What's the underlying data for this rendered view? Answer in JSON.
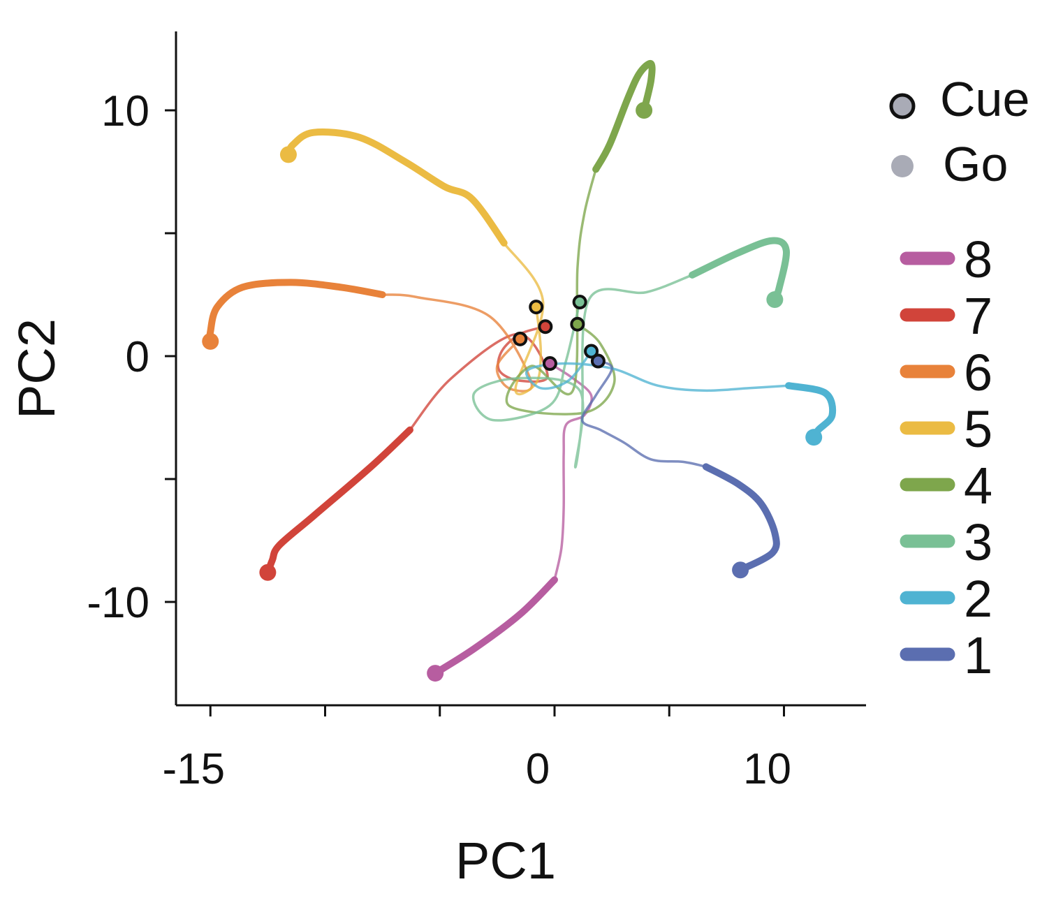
{
  "chart_data": {
    "type": "line",
    "title": "",
    "xlabel": "PC1",
    "ylabel": "PC2",
    "xlim": [
      -16.5,
      13.7
    ],
    "ylim": [
      -14.2,
      13.2
    ],
    "xticks": [
      -15,
      -10,
      -5,
      0,
      5,
      10
    ],
    "xtick_labels": [
      "-15",
      "",
      "",
      "0",
      "",
      "10"
    ],
    "yticks": [
      -10,
      -5,
      0,
      5,
      10
    ],
    "ytick_labels": [
      "-10",
      "",
      "0",
      "",
      "10"
    ],
    "grid": false,
    "marker_legend": [
      {
        "label": "Cue",
        "style": "outlined"
      },
      {
        "label": "Go",
        "style": "filled"
      }
    ],
    "marker_legend_color": "#a9abb6",
    "legend_placement": "right",
    "series": [
      {
        "name": "8",
        "color": "#b75da0",
        "cue": [
          -0.2,
          -0.3
        ],
        "go": [
          -5.2,
          -12.9
        ],
        "path": [
          [
            -0.2,
            -0.3
          ],
          [
            0.8,
            -0.9
          ],
          [
            1.6,
            -1.6
          ],
          [
            1.3,
            -2.4
          ],
          [
            0.5,
            -2.8
          ],
          [
            0.4,
            -4.0
          ],
          [
            0.4,
            -6.2
          ],
          [
            0.3,
            -7.8
          ],
          [
            0.0,
            -9.1
          ],
          [
            -1.5,
            -10.5
          ],
          [
            -3.5,
            -11.9
          ],
          [
            -5.2,
            -12.9
          ]
        ],
        "bold_from": 8
      },
      {
        "name": "7",
        "color": "#d1443a",
        "cue": [
          -0.4,
          1.2
        ],
        "go": [
          -12.5,
          -8.8
        ],
        "path": [
          [
            -0.4,
            1.2
          ],
          [
            -1.5,
            0.9
          ],
          [
            -2.3,
            0.2
          ],
          [
            -2.4,
            -0.6
          ],
          [
            -1.5,
            -1.0
          ],
          [
            -0.3,
            -0.8
          ],
          [
            -1.6,
            0.9
          ],
          [
            -4.5,
            -0.9
          ],
          [
            -6.3,
            -3.0
          ],
          [
            -8.0,
            -4.5
          ],
          [
            -10.5,
            -6.5
          ],
          [
            -12.0,
            -7.7
          ],
          [
            -12.3,
            -8.3
          ],
          [
            -12.5,
            -8.8
          ]
        ],
        "bold_from": 8
      },
      {
        "name": "6",
        "color": "#e8823a",
        "cue": [
          -1.5,
          0.7
        ],
        "go": [
          -15.0,
          0.6
        ],
        "path": [
          [
            -1.5,
            0.7
          ],
          [
            -2.5,
            -0.4
          ],
          [
            -2.0,
            -1.3
          ],
          [
            -1.0,
            -1.1
          ],
          [
            -2.8,
            1.6
          ],
          [
            -6.0,
            2.4
          ],
          [
            -7.5,
            2.5
          ],
          [
            -9.3,
            2.8
          ],
          [
            -11.5,
            3.0
          ],
          [
            -13.6,
            2.8
          ],
          [
            -14.7,
            2.0
          ],
          [
            -15.0,
            1.0
          ],
          [
            -15.0,
            0.6
          ]
        ],
        "bold_from": 6
      },
      {
        "name": "5",
        "color": "#ebbb43",
        "cue": [
          -0.8,
          2.0
        ],
        "go": [
          -11.6,
          8.2
        ],
        "path": [
          [
            -0.8,
            2.0
          ],
          [
            -0.6,
            0.2
          ],
          [
            -0.8,
            -1.1
          ],
          [
            -1.7,
            -1.3
          ],
          [
            -0.5,
            2.2
          ],
          [
            -2.2,
            4.6
          ],
          [
            -3.6,
            6.4
          ],
          [
            -4.8,
            6.9
          ],
          [
            -6.5,
            7.9
          ],
          [
            -8.5,
            8.9
          ],
          [
            -10.5,
            9.1
          ],
          [
            -11.4,
            8.6
          ],
          [
            -11.6,
            8.2
          ]
        ],
        "bold_from": 5
      },
      {
        "name": "4",
        "color": "#7ea64c",
        "cue": [
          1.0,
          1.3
        ],
        "go": [
          3.9,
          10.0
        ],
        "path": [
          [
            1.0,
            1.3
          ],
          [
            2.0,
            0.5
          ],
          [
            2.6,
            -1.1
          ],
          [
            1.3,
            -2.3
          ],
          [
            -2.0,
            -2.0
          ],
          [
            -1.0,
            -0.4
          ],
          [
            0.8,
            -1.4
          ],
          [
            1.0,
            3.6
          ],
          [
            1.3,
            5.8
          ],
          [
            1.8,
            7.6
          ],
          [
            2.4,
            8.6
          ],
          [
            3.2,
            10.5
          ],
          [
            3.7,
            11.5
          ],
          [
            4.2,
            11.9
          ],
          [
            4.2,
            11.2
          ],
          [
            3.9,
            10.0
          ]
        ],
        "bold_from": 9
      },
      {
        "name": "3",
        "color": "#79c095",
        "cue": [
          1.1,
          2.2
        ],
        "go": [
          9.6,
          2.3
        ],
        "path": [
          [
            1.1,
            2.2
          ],
          [
            0.5,
            -0.2
          ],
          [
            -0.2,
            -2.0
          ],
          [
            -2.7,
            -2.6
          ],
          [
            -3.5,
            -1.5
          ],
          [
            -1.6,
            -0.9
          ],
          [
            1.1,
            -1.4
          ],
          [
            0.9,
            -4.5
          ],
          [
            1.2,
            -2.5
          ],
          [
            1.5,
            2.3
          ],
          [
            4.0,
            2.6
          ],
          [
            6.0,
            3.3
          ],
          [
            8.0,
            4.2
          ],
          [
            9.5,
            4.7
          ],
          [
            10.1,
            4.3
          ],
          [
            9.8,
            2.8
          ],
          [
            9.6,
            2.3
          ]
        ],
        "bold_from": 11
      },
      {
        "name": "2",
        "color": "#4fb3d2",
        "cue": [
          1.6,
          0.2
        ],
        "go": [
          11.3,
          -3.3
        ],
        "path": [
          [
            1.6,
            0.2
          ],
          [
            0.6,
            -1.0
          ],
          [
            -0.6,
            -1.3
          ],
          [
            -1.2,
            -0.6
          ],
          [
            0.3,
            -0.3
          ],
          [
            2.5,
            -0.5
          ],
          [
            4.5,
            -1.2
          ],
          [
            6.5,
            -1.4
          ],
          [
            8.5,
            -1.3
          ],
          [
            10.2,
            -1.2
          ],
          [
            11.8,
            -1.5
          ],
          [
            12.1,
            -2.4
          ],
          [
            11.5,
            -3.0
          ],
          [
            11.3,
            -3.3
          ]
        ],
        "bold_from": 9
      },
      {
        "name": "1",
        "color": "#5b6eb0",
        "cue": [
          1.9,
          -0.2
        ],
        "go": [
          8.1,
          -8.7
        ],
        "path": [
          [
            1.9,
            -0.2
          ],
          [
            2.5,
            -0.5
          ],
          [
            1.8,
            -1.6
          ],
          [
            1.2,
            -2.6
          ],
          [
            2.0,
            -3.0
          ],
          [
            3.0,
            -3.5
          ],
          [
            4.2,
            -4.2
          ],
          [
            5.6,
            -4.3
          ],
          [
            6.6,
            -4.5
          ],
          [
            8.0,
            -5.2
          ],
          [
            9.0,
            -6.0
          ],
          [
            9.6,
            -7.2
          ],
          [
            9.5,
            -8.0
          ],
          [
            8.1,
            -8.7
          ]
        ],
        "bold_from": 8
      }
    ]
  }
}
